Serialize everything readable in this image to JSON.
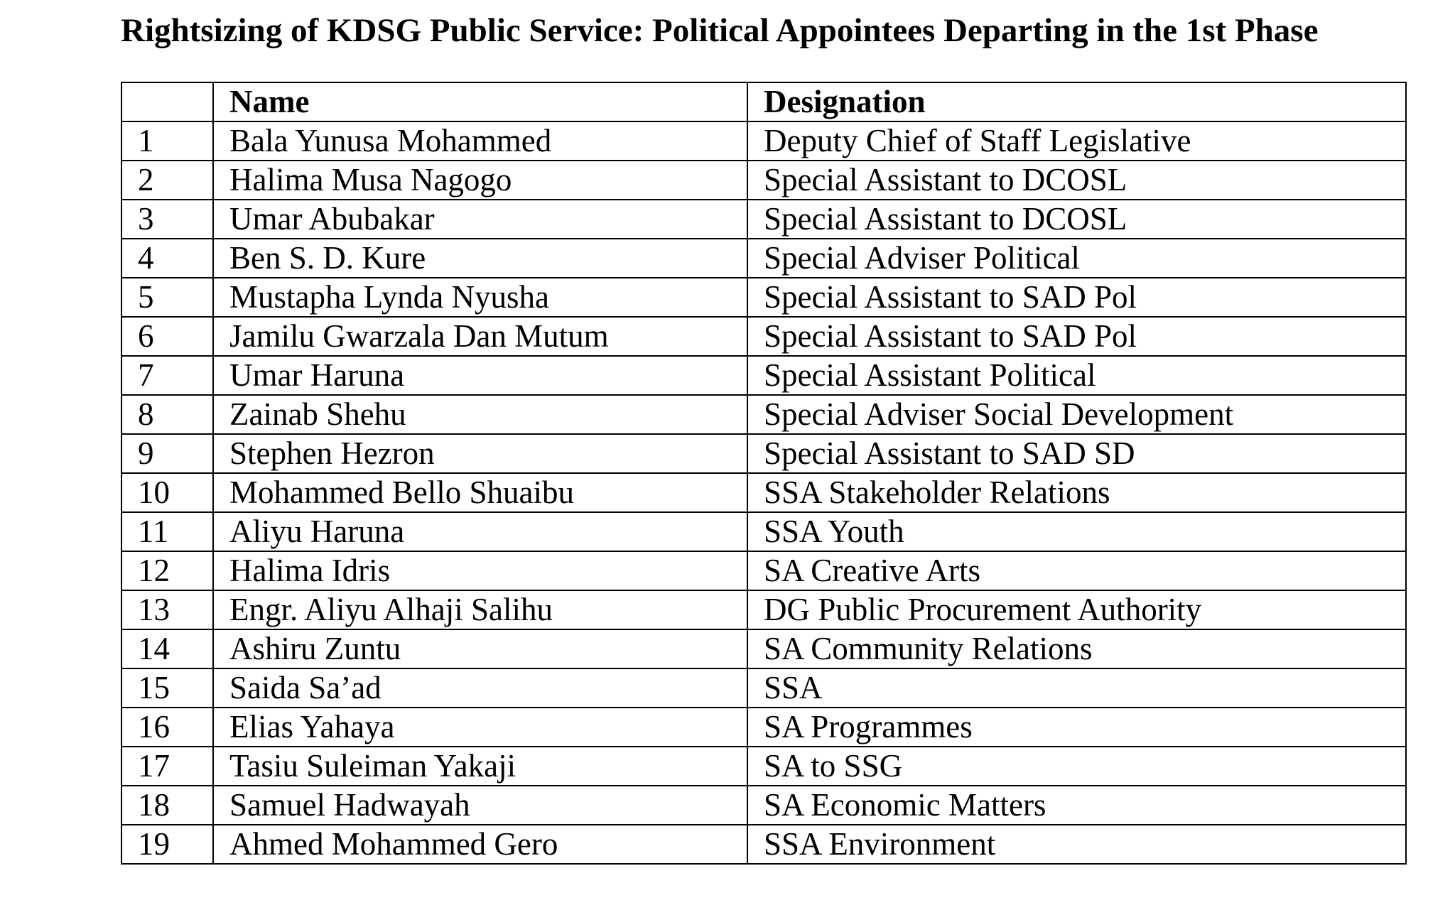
{
  "document": {
    "title": "Rightsizing of KDSG Public Service: Political Appointees Departing in the 1st Phase"
  },
  "table": {
    "headers": {
      "number": "",
      "name": "Name",
      "designation": "Designation"
    },
    "rows": [
      {
        "number": "1",
        "name": "Bala Yunusa Mohammed",
        "designation": "Deputy Chief of Staff Legislative"
      },
      {
        "number": "2",
        "name": "Halima Musa Nagogo",
        "designation": "Special Assistant to DCOSL"
      },
      {
        "number": "3",
        "name": "Umar Abubakar",
        "designation": "Special Assistant to DCOSL"
      },
      {
        "number": "4",
        "name": "Ben S. D. Kure",
        "designation": "Special Adviser Political"
      },
      {
        "number": "5",
        "name": "Mustapha Lynda Nyusha",
        "designation": "Special Assistant to SAD Pol"
      },
      {
        "number": "6",
        "name": "Jamilu Gwarzala Dan Mutum",
        "designation": "Special Assistant to SAD Pol"
      },
      {
        "number": "7",
        "name": "Umar Haruna",
        "designation": "Special Assistant Political"
      },
      {
        "number": "8",
        "name": "Zainab Shehu",
        "designation": "Special Adviser Social Development"
      },
      {
        "number": "9",
        "name": "Stephen Hezron",
        "designation": "Special Assistant to SAD SD"
      },
      {
        "number": "10",
        "name": "Mohammed Bello Shuaibu",
        "designation": "SSA Stakeholder Relations"
      },
      {
        "number": "11",
        "name": "Aliyu Haruna",
        "designation": "SSA Youth"
      },
      {
        "number": "12",
        "name": "Halima Idris",
        "designation": "SA Creative Arts"
      },
      {
        "number": "13",
        "name": "Engr. Aliyu Alhaji Salihu",
        "designation": "DG Public Procurement Authority"
      },
      {
        "number": "14",
        "name": "Ashiru Zuntu",
        "designation": "SA Community Relations"
      },
      {
        "number": "15",
        "name": "Saida Sa’ad",
        "designation": "SSA"
      },
      {
        "number": "16",
        "name": "Elias Yahaya",
        "designation": "SA Programmes"
      },
      {
        "number": "17",
        "name": "Tasiu Suleiman Yakaji",
        "designation": "SA to SSG"
      },
      {
        "number": "18",
        "name": "Samuel Hadwayah",
        "designation": "SA Economic Matters"
      },
      {
        "number": "19",
        "name": "Ahmed Mohammed Gero",
        "designation": "SSA Environment"
      }
    ]
  }
}
